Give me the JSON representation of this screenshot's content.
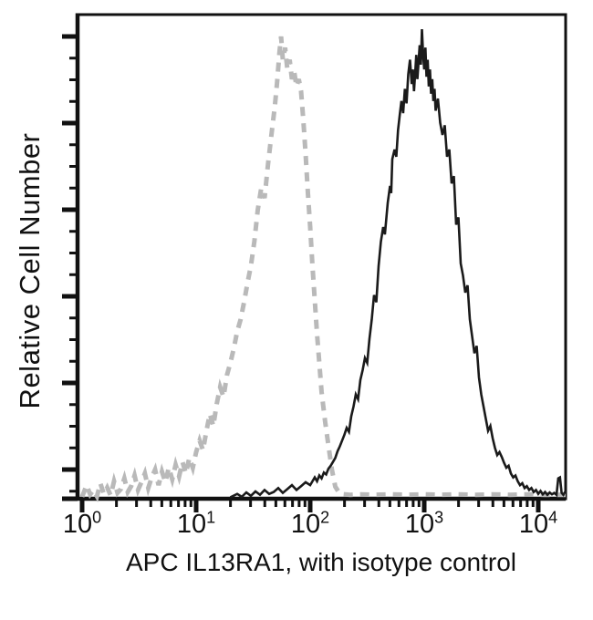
{
  "figure": {
    "kind": "flow-cytometry-histogram",
    "background_color": "#ffffff",
    "axis_color": "#111111"
  },
  "x_axis": {
    "scale": "log10",
    "ticks": [
      {
        "base": "10",
        "exp": "0"
      },
      {
        "base": "10",
        "exp": "1"
      },
      {
        "base": "10",
        "exp": "2"
      },
      {
        "base": "10",
        "exp": "3"
      },
      {
        "base": "10",
        "exp": "4"
      }
    ]
  },
  "y_axis": {
    "label": "Relative Cell Number",
    "tick_labels": []
  },
  "chart_data": {
    "type": "line",
    "subtype": "flow-histogram-overlay",
    "title": "",
    "xlabel": "APC IL13RA1, with isotype control",
    "ylabel": "Relative Cell Number",
    "x_scale": "log",
    "x_range_log10": [
      0,
      4.24
    ],
    "x_tick_labels": [
      "10^0",
      "10^1",
      "10^2",
      "10^3",
      "10^4"
    ],
    "y_unit": "percent of peak",
    "y_range": [
      0,
      100
    ],
    "grid": false,
    "legend_position": "none",
    "series": [
      {
        "name": "isotype control",
        "style": "dashed",
        "color": "#b9b9b9",
        "peak_x_log10": 1.745,
        "points": [
          [
            0.0,
            0.4
          ],
          [
            0.04,
            2.8
          ],
          [
            0.07,
            0.9
          ],
          [
            0.1,
            1.8
          ],
          [
            0.13,
            0.5
          ],
          [
            0.16,
            3.2
          ],
          [
            0.19,
            1.0
          ],
          [
            0.22,
            2.3
          ],
          [
            0.25,
            0.7
          ],
          [
            0.28,
            3.6
          ],
          [
            0.31,
            1.2
          ],
          [
            0.34,
            2.0
          ],
          [
            0.37,
            4.2
          ],
          [
            0.4,
            1.4
          ],
          [
            0.43,
            2.6
          ],
          [
            0.46,
            4.8
          ],
          [
            0.49,
            1.8
          ],
          [
            0.52,
            3.4
          ],
          [
            0.55,
            5.2
          ],
          [
            0.58,
            2.2
          ],
          [
            0.61,
            4.4
          ],
          [
            0.64,
            6.0
          ],
          [
            0.67,
            2.8
          ],
          [
            0.7,
            5.6
          ],
          [
            0.73,
            3.4
          ],
          [
            0.76,
            6.4
          ],
          [
            0.79,
            4.0
          ],
          [
            0.82,
            7.0
          ],
          [
            0.85,
            4.6
          ],
          [
            0.88,
            7.6
          ],
          [
            0.91,
            5.2
          ],
          [
            0.94,
            8.4
          ],
          [
            0.97,
            6.4
          ],
          [
            1.0,
            9.6
          ],
          [
            1.03,
            12.0
          ],
          [
            1.06,
            10.0
          ],
          [
            1.09,
            14.0
          ],
          [
            1.12,
            17.5
          ],
          [
            1.15,
            15.0
          ],
          [
            1.18,
            19.5
          ],
          [
            1.21,
            23.0
          ],
          [
            1.24,
            21.0
          ],
          [
            1.27,
            25.5
          ],
          [
            1.3,
            28.0
          ],
          [
            1.33,
            31.0
          ],
          [
            1.36,
            34.5
          ],
          [
            1.39,
            37.0
          ],
          [
            1.42,
            40.5
          ],
          [
            1.45,
            44.5
          ],
          [
            1.48,
            48.0
          ],
          [
            1.51,
            53.0
          ],
          [
            1.54,
            59.5
          ],
          [
            1.57,
            64.0
          ],
          [
            1.6,
            62.0
          ],
          [
            1.63,
            69.0
          ],
          [
            1.66,
            75.0
          ],
          [
            1.69,
            81.0
          ],
          [
            1.71,
            86.0
          ],
          [
            1.73,
            92.0
          ],
          [
            1.745,
            95.3
          ],
          [
            1.76,
            90.5
          ],
          [
            1.78,
            93.0
          ],
          [
            1.8,
            88.5
          ],
          [
            1.82,
            90.5
          ],
          [
            1.84,
            86.5
          ],
          [
            1.86,
            88.0
          ],
          [
            1.88,
            85.0
          ],
          [
            1.9,
            86.5
          ],
          [
            1.92,
            84.0
          ],
          [
            1.94,
            78.0
          ],
          [
            1.96,
            71.0
          ],
          [
            1.98,
            63.0
          ],
          [
            2.0,
            56.0
          ],
          [
            2.02,
            48.0
          ],
          [
            2.04,
            41.0
          ],
          [
            2.06,
            34.0
          ],
          [
            2.08,
            28.0
          ],
          [
            2.1,
            22.0
          ],
          [
            2.13,
            16.0
          ],
          [
            2.16,
            11.0
          ],
          [
            2.19,
            6.0
          ],
          [
            2.22,
            2.5
          ],
          [
            2.26,
            1.0
          ],
          [
            2.35,
            0.8
          ],
          [
            2.45,
            0.9
          ],
          [
            2.55,
            0.8
          ],
          [
            2.7,
            0.9
          ],
          [
            2.85,
            0.8
          ],
          [
            3.0,
            0.9
          ],
          [
            3.15,
            0.8
          ],
          [
            3.3,
            0.9
          ],
          [
            3.45,
            0.8
          ],
          [
            3.6,
            0.9
          ],
          [
            3.75,
            0.8
          ],
          [
            3.9,
            0.9
          ],
          [
            4.05,
            0.8
          ],
          [
            4.24,
            0.8
          ]
        ]
      },
      {
        "name": "APC IL13RA1",
        "style": "solid",
        "color": "#1a1a1a",
        "peak_x_log10": 2.98,
        "points": [
          [
            1.3,
            0.3
          ],
          [
            1.36,
            1.0
          ],
          [
            1.4,
            0.4
          ],
          [
            1.44,
            1.3
          ],
          [
            1.48,
            0.6
          ],
          [
            1.52,
            1.5
          ],
          [
            1.56,
            0.8
          ],
          [
            1.6,
            1.8
          ],
          [
            1.64,
            1.0
          ],
          [
            1.68,
            1.4
          ],
          [
            1.72,
            2.2
          ],
          [
            1.76,
            1.2
          ],
          [
            1.8,
            2.0
          ],
          [
            1.84,
            2.8
          ],
          [
            1.88,
            1.8
          ],
          [
            1.92,
            2.6
          ],
          [
            1.96,
            3.4
          ],
          [
            2.0,
            2.8
          ],
          [
            2.04,
            4.4
          ],
          [
            2.06,
            3.6
          ],
          [
            2.08,
            4.8
          ],
          [
            2.1,
            4.2
          ],
          [
            2.12,
            5.4
          ],
          [
            2.14,
            5.0
          ],
          [
            2.16,
            6.2
          ],
          [
            2.18,
            6.8
          ],
          [
            2.2,
            7.6
          ],
          [
            2.22,
            8.4
          ],
          [
            2.24,
            9.8
          ],
          [
            2.26,
            10.8
          ],
          [
            2.28,
            12.0
          ],
          [
            2.3,
            13.2
          ],
          [
            2.32,
            14.6
          ],
          [
            2.34,
            13.8
          ],
          [
            2.36,
            17.0
          ],
          [
            2.38,
            19.0
          ],
          [
            2.4,
            21.5
          ],
          [
            2.42,
            20.5
          ],
          [
            2.44,
            24.5
          ],
          [
            2.46,
            26.5
          ],
          [
            2.48,
            29.0
          ],
          [
            2.5,
            28.0
          ],
          [
            2.52,
            33.0
          ],
          [
            2.54,
            37.0
          ],
          [
            2.56,
            42.0
          ],
          [
            2.58,
            40.5
          ],
          [
            2.6,
            48.0
          ],
          [
            2.62,
            53.0
          ],
          [
            2.64,
            56.0
          ],
          [
            2.655,
            54.5
          ],
          [
            2.67,
            58.5
          ],
          [
            2.68,
            61.0
          ],
          [
            2.7,
            64.5
          ],
          [
            2.71,
            63.0
          ],
          [
            2.72,
            70.0
          ],
          [
            2.74,
            72.0
          ],
          [
            2.755,
            70.5
          ],
          [
            2.77,
            76.0
          ],
          [
            2.785,
            79.0
          ],
          [
            2.8,
            82.0
          ],
          [
            2.815,
            79.5
          ],
          [
            2.83,
            84.5
          ],
          [
            2.845,
            81.5
          ],
          [
            2.86,
            87.5
          ],
          [
            2.875,
            90.5
          ],
          [
            2.89,
            85.5
          ],
          [
            2.9,
            88.5
          ],
          [
            2.91,
            84.0
          ],
          [
            2.92,
            87.5
          ],
          [
            2.93,
            91.5
          ],
          [
            2.94,
            86.5
          ],
          [
            2.95,
            90.0
          ],
          [
            2.96,
            93.5
          ],
          [
            2.97,
            89.5
          ],
          [
            2.98,
            96.8
          ],
          [
            2.99,
            91.5
          ],
          [
            3.0,
            88.5
          ],
          [
            3.01,
            93.0
          ],
          [
            3.02,
            87.0
          ],
          [
            3.03,
            90.5
          ],
          [
            3.04,
            85.0
          ],
          [
            3.05,
            88.5
          ],
          [
            3.06,
            83.5
          ],
          [
            3.07,
            86.5
          ],
          [
            3.08,
            82.0
          ],
          [
            3.09,
            84.5
          ],
          [
            3.1,
            80.0
          ],
          [
            3.12,
            82.5
          ],
          [
            3.14,
            77.5
          ],
          [
            3.16,
            75.0
          ],
          [
            3.18,
            77.0
          ],
          [
            3.2,
            70.5
          ],
          [
            3.22,
            72.0
          ],
          [
            3.24,
            65.0
          ],
          [
            3.26,
            66.5
          ],
          [
            3.28,
            56.5
          ],
          [
            3.3,
            58.0
          ],
          [
            3.32,
            48.5
          ],
          [
            3.34,
            46.0
          ],
          [
            3.36,
            42.5
          ],
          [
            3.38,
            44.0
          ],
          [
            3.4,
            37.0
          ],
          [
            3.42,
            33.5
          ],
          [
            3.44,
            30.0
          ],
          [
            3.46,
            31.5
          ],
          [
            3.48,
            25.0
          ],
          [
            3.5,
            21.5
          ],
          [
            3.52,
            19.0
          ],
          [
            3.54,
            16.5
          ],
          [
            3.56,
            14.0
          ],
          [
            3.58,
            15.0
          ],
          [
            3.6,
            12.5
          ],
          [
            3.62,
            10.5
          ],
          [
            3.64,
            9.0
          ],
          [
            3.66,
            9.6
          ],
          [
            3.68,
            8.6
          ],
          [
            3.7,
            7.4
          ],
          [
            3.72,
            6.4
          ],
          [
            3.74,
            6.8
          ],
          [
            3.76,
            5.2
          ],
          [
            3.78,
            4.4
          ],
          [
            3.8,
            4.8
          ],
          [
            3.82,
            3.6
          ],
          [
            3.84,
            2.8
          ],
          [
            3.86,
            3.2
          ],
          [
            3.88,
            2.2
          ],
          [
            3.9,
            2.6
          ],
          [
            3.92,
            1.8
          ],
          [
            3.94,
            2.2
          ],
          [
            3.96,
            1.4
          ],
          [
            3.98,
            1.8
          ],
          [
            4.0,
            1.0
          ],
          [
            4.02,
            1.6
          ],
          [
            4.04,
            0.9
          ],
          [
            4.06,
            1.4
          ],
          [
            4.08,
            0.8
          ],
          [
            4.1,
            1.3
          ],
          [
            4.12,
            0.9
          ],
          [
            4.14,
            1.2
          ],
          [
            4.16,
            0.8
          ],
          [
            4.175,
            4.2
          ],
          [
            4.19,
            4.4
          ],
          [
            4.205,
            1.2
          ],
          [
            4.22,
            0.8
          ],
          [
            4.24,
            1.6
          ]
        ]
      }
    ]
  }
}
